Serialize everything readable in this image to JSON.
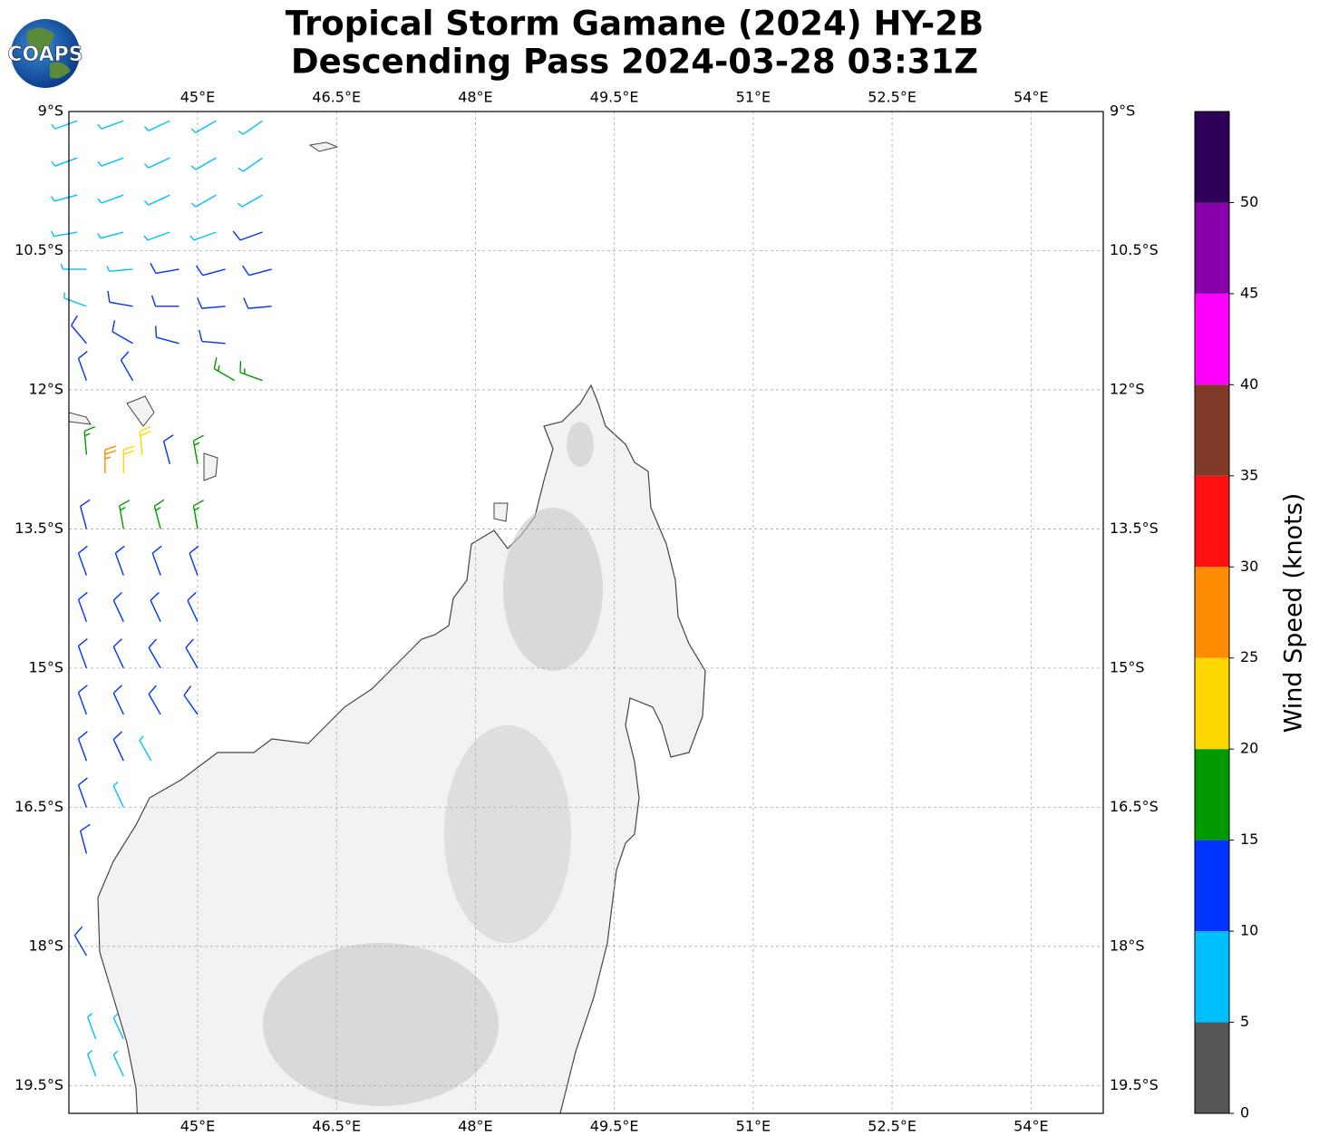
{
  "logo": "COAPS",
  "title": [
    "Tropical Storm Gamane (2024) HY-2B",
    "Descending Pass 2024-03-28 03:31Z"
  ],
  "map": {
    "lonlim": [
      43.61,
      54.78
    ],
    "latlim": [
      -9,
      -19.8
    ],
    "lonticks": [
      {
        "value": 45,
        "label": "45°E"
      },
      {
        "value": 46.5,
        "label": "46.5°E"
      },
      {
        "value": 48,
        "label": "48°E"
      },
      {
        "value": 49.5,
        "label": "49.5°E"
      },
      {
        "value": 51,
        "label": "51°E"
      },
      {
        "value": 52.5,
        "label": "52.5°E"
      },
      {
        "value": 54,
        "label": "54°E"
      }
    ],
    "latticks": [
      {
        "value": -9,
        "label": "9°S"
      },
      {
        "value": -10.5,
        "label": "10.5°S"
      },
      {
        "value": -12,
        "label": "12°S"
      },
      {
        "value": -13.5,
        "label": "13.5°S"
      },
      {
        "value": -15,
        "label": "15°S"
      },
      {
        "value": -16.5,
        "label": "16.5°S"
      },
      {
        "value": -18,
        "label": "18°S"
      },
      {
        "value": -19.5,
        "label": "19.5°S"
      }
    ],
    "grid": true
  },
  "colorbar": {
    "label": "Wind Speed (knots)",
    "lim": [
      0,
      55
    ],
    "ticks": [
      0,
      5,
      10,
      15,
      20,
      25,
      30,
      35,
      40,
      45,
      50
    ],
    "bounds": [
      0,
      5,
      10,
      15,
      20,
      25,
      30,
      35,
      40,
      45,
      50,
      55
    ],
    "colors": [
      "#555555",
      "#00bfff",
      "#0033ff",
      "#009900",
      "#ffd700",
      "#ff8c00",
      "#ff1010",
      "#7f3b27",
      "#ff00ff",
      "#8800aa",
      "#2e0057"
    ]
  },
  "wind_barbs": [
    [
      43.7,
      -9.1,
      8,
      250
    ],
    [
      44.2,
      -9.1,
      8,
      250
    ],
    [
      44.7,
      -9.1,
      8,
      245
    ],
    [
      45.2,
      -9.1,
      8,
      240
    ],
    [
      45.7,
      -9.1,
      8,
      235
    ],
    [
      43.7,
      -9.5,
      8,
      250
    ],
    [
      44.2,
      -9.5,
      8,
      250
    ],
    [
      44.7,
      -9.5,
      8,
      245
    ],
    [
      45.2,
      -9.5,
      8,
      240
    ],
    [
      45.7,
      -9.5,
      8,
      235
    ],
    [
      43.7,
      -9.9,
      8,
      255
    ],
    [
      44.2,
      -9.9,
      8,
      250
    ],
    [
      44.7,
      -9.9,
      8,
      245
    ],
    [
      45.2,
      -9.9,
      9,
      240
    ],
    [
      45.7,
      -9.9,
      9,
      240
    ],
    [
      43.7,
      -10.3,
      7,
      260
    ],
    [
      44.2,
      -10.3,
      8,
      255
    ],
    [
      44.7,
      -10.3,
      8,
      250
    ],
    [
      45.2,
      -10.3,
      9,
      250
    ],
    [
      45.7,
      -10.3,
      11,
      250
    ],
    [
      43.8,
      -10.7,
      8,
      270
    ],
    [
      44.3,
      -10.7,
      9,
      265
    ],
    [
      44.8,
      -10.7,
      11,
      260
    ],
    [
      45.3,
      -10.7,
      11,
      255
    ],
    [
      45.8,
      -10.7,
      12,
      255
    ],
    [
      43.8,
      -11.1,
      9,
      290
    ],
    [
      44.3,
      -11.1,
      11,
      280
    ],
    [
      44.8,
      -11.1,
      12,
      270
    ],
    [
      45.3,
      -11.1,
      12,
      265
    ],
    [
      45.8,
      -11.1,
      12,
      265
    ],
    [
      43.8,
      -11.5,
      12,
      320
    ],
    [
      44.3,
      -11.5,
      11,
      300
    ],
    [
      44.8,
      -11.5,
      12,
      285
    ],
    [
      45.3,
      -11.5,
      13,
      275
    ],
    [
      43.8,
      -11.9,
      12,
      340
    ],
    [
      44.3,
      -11.9,
      12,
      330
    ],
    [
      45.4,
      -11.9,
      16,
      300
    ],
    [
      45.7,
      -11.9,
      17,
      290
    ],
    [
      43.8,
      -12.7,
      17,
      355
    ],
    [
      44.0,
      -12.9,
      26,
      0
    ],
    [
      44.2,
      -12.9,
      22,
      0
    ],
    [
      44.4,
      -12.7,
      22,
      355
    ],
    [
      44.7,
      -12.8,
      13,
      345
    ],
    [
      45.0,
      -12.8,
      16,
      350
    ],
    [
      43.8,
      -13.5,
      12,
      345
    ],
    [
      44.2,
      -13.5,
      17,
      350
    ],
    [
      44.6,
      -13.5,
      16,
      345
    ],
    [
      45.0,
      -13.5,
      17,
      350
    ],
    [
      43.8,
      -14.0,
      12,
      340
    ],
    [
      44.2,
      -14.0,
      12,
      340
    ],
    [
      44.6,
      -14.0,
      13,
      340
    ],
    [
      45.0,
      -14.0,
      12,
      340
    ],
    [
      43.8,
      -14.5,
      12,
      340
    ],
    [
      44.2,
      -14.5,
      12,
      335
    ],
    [
      44.6,
      -14.5,
      12,
      335
    ],
    [
      45.0,
      -14.5,
      12,
      335
    ],
    [
      43.8,
      -15.0,
      12,
      340
    ],
    [
      44.2,
      -15.0,
      12,
      335
    ],
    [
      44.6,
      -15.0,
      12,
      330
    ],
    [
      45.0,
      -15.0,
      11,
      330
    ],
    [
      43.8,
      -15.5,
      12,
      340
    ],
    [
      44.2,
      -15.5,
      12,
      335
    ],
    [
      44.6,
      -15.5,
      11,
      330
    ],
    [
      45.0,
      -15.5,
      11,
      325
    ],
    [
      43.8,
      -16.0,
      11,
      340
    ],
    [
      44.2,
      -16.0,
      11,
      335
    ],
    [
      44.5,
      -16.0,
      9,
      330
    ],
    [
      43.8,
      -16.5,
      11,
      340
    ],
    [
      44.2,
      -16.5,
      9,
      335
    ],
    [
      43.8,
      -17.0,
      11,
      345
    ],
    [
      43.8,
      -18.1,
      11,
      330
    ],
    [
      43.9,
      -19.0,
      8,
      340
    ],
    [
      44.2,
      -19.0,
      8,
      335
    ],
    [
      43.9,
      -19.4,
      8,
      340
    ],
    [
      44.2,
      -19.4,
      8,
      335
    ]
  ]
}
